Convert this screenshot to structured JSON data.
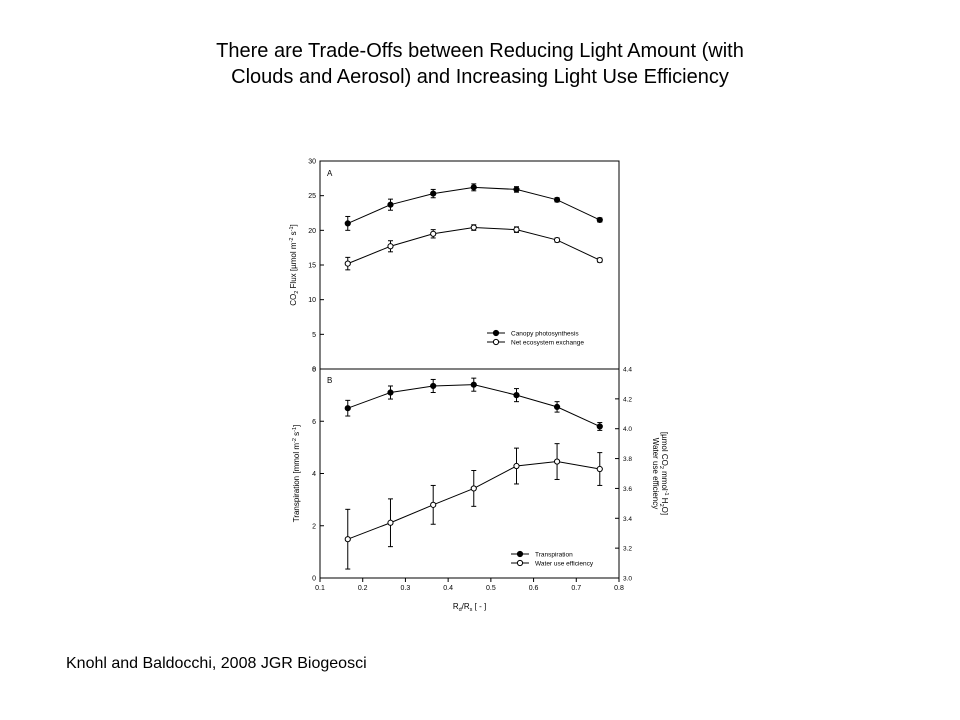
{
  "title": {
    "line1": "There are Trade-Offs between Reducing Light Amount (with",
    "line2": "Clouds and Aerosol) and Increasing Light Use Efficiency"
  },
  "citation": "Knohl and Baldocchi, 2008 JGR Biogeosci",
  "chart_data": [
    {
      "type": "line",
      "panel_label": "A",
      "ylabel_parts": [
        "CO",
        "2",
        " Flux [µmol m",
        "-2",
        " s",
        "-1",
        "]"
      ],
      "ylim": [
        0,
        30
      ],
      "yticks": [
        0,
        5,
        10,
        15,
        20,
        25,
        30
      ],
      "xlim": [
        0.1,
        0.8
      ],
      "legend_position": "bottom-right",
      "series": [
        {
          "name": "Canopy photosynthesis",
          "marker": "filled-circle",
          "x": [
            0.165,
            0.265,
            0.365,
            0.46,
            0.56,
            0.655,
            0.755
          ],
          "y": [
            21.0,
            23.7,
            25.3,
            26.2,
            25.9,
            24.4,
            21.5
          ],
          "err": [
            1.0,
            0.8,
            0.6,
            0.5,
            0.4,
            0.3,
            0.3
          ]
        },
        {
          "name": "Net ecosystem exchange",
          "marker": "open-circle",
          "x": [
            0.165,
            0.265,
            0.365,
            0.46,
            0.56,
            0.655,
            0.755
          ],
          "y": [
            15.2,
            17.7,
            19.5,
            20.4,
            20.1,
            18.6,
            15.7
          ],
          "err": [
            0.9,
            0.8,
            0.6,
            0.4,
            0.4,
            0.3,
            0.3
          ]
        }
      ]
    },
    {
      "type": "line",
      "panel_label": "B",
      "xlabel_parts": [
        "R",
        "d",
        "/R",
        "s",
        " [ - ]"
      ],
      "xlim": [
        0.1,
        0.8
      ],
      "xticks": [
        0.1,
        0.2,
        0.3,
        0.4,
        0.5,
        0.6,
        0.7,
        0.8
      ],
      "ylabel_left_parts": [
        "Transpiration [mmol m",
        "-2",
        " s",
        "-1",
        "]"
      ],
      "ylim_left": [
        0,
        8
      ],
      "yticks_left": [
        0,
        2,
        4,
        6,
        8
      ],
      "ylabel_right_line1": "Water use efficiency",
      "ylabel_right_parts": [
        "[µmol CO",
        "2",
        " mmol",
        "-1",
        " H",
        "2",
        "O]"
      ],
      "ylim_right": [
        3.0,
        4.4
      ],
      "yticks_right": [
        "3.0",
        "3.2",
        "3.4",
        "3.6",
        "3.8",
        "4.0",
        "4.2",
        "4.4"
      ],
      "legend_position": "bottom-right",
      "series": [
        {
          "name": "Transpiration",
          "marker": "filled-circle",
          "axis": "left",
          "x": [
            0.165,
            0.265,
            0.365,
            0.46,
            0.56,
            0.655,
            0.755
          ],
          "y": [
            6.5,
            7.1,
            7.35,
            7.4,
            7.0,
            6.55,
            5.8
          ],
          "err": [
            0.3,
            0.25,
            0.25,
            0.25,
            0.25,
            0.2,
            0.15
          ]
        },
        {
          "name": "Water use efficiency",
          "marker": "open-circle",
          "axis": "right",
          "x": [
            0.165,
            0.265,
            0.365,
            0.46,
            0.56,
            0.655,
            0.755
          ],
          "y": [
            3.26,
            3.37,
            3.49,
            3.6,
            3.75,
            3.78,
            3.73
          ],
          "err": [
            0.2,
            0.16,
            0.13,
            0.12,
            0.12,
            0.12,
            0.11
          ]
        }
      ]
    }
  ]
}
